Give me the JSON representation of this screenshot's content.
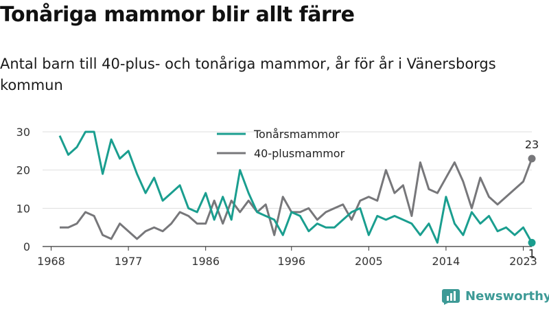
{
  "title": "Tonåriga mammor blir allt färre",
  "subtitle": "Antal barn till 40-plus- och tonåriga mammor, år för år i Vänersborgs kommun",
  "brand": {
    "name": "Newsworthy",
    "color": "#3d9a96"
  },
  "chart_data": {
    "type": "line",
    "xlim": [
      1967,
      2024
    ],
    "ylim": [
      0,
      30
    ],
    "x_ticks": [
      1968,
      1977,
      1986,
      1996,
      2005,
      2014,
      2023
    ],
    "y_ticks": [
      0,
      10,
      20,
      30
    ],
    "grid": true,
    "legend_position": "top-center",
    "x": [
      1969,
      1970,
      1971,
      1972,
      1973,
      1974,
      1975,
      1976,
      1977,
      1978,
      1979,
      1980,
      1981,
      1982,
      1983,
      1984,
      1985,
      1986,
      1987,
      1988,
      1989,
      1990,
      1991,
      1992,
      1993,
      1994,
      1995,
      1996,
      1997,
      1998,
      1999,
      2000,
      2001,
      2002,
      2003,
      2004,
      2005,
      2006,
      2007,
      2008,
      2009,
      2010,
      2011,
      2012,
      2013,
      2014,
      2015,
      2016,
      2017,
      2018,
      2019,
      2020,
      2021,
      2022,
      2023,
      2024
    ],
    "series": [
      {
        "name": "Tonårsmammor",
        "color": "#1a9e8f",
        "values": [
          29,
          24,
          26,
          30,
          30,
          19,
          28,
          23,
          25,
          19,
          14,
          18,
          12,
          14,
          16,
          10,
          9,
          14,
          7,
          13,
          7,
          20,
          14,
          9,
          8,
          7,
          3,
          9,
          8,
          4,
          6,
          5,
          5,
          7,
          9,
          10,
          3,
          8,
          7,
          8,
          7,
          6,
          3,
          6,
          1,
          13,
          6,
          3,
          9,
          6,
          8,
          4,
          5,
          3,
          5,
          1
        ],
        "end_label": "1"
      },
      {
        "name": "40-plusmammor",
        "color": "#77777a",
        "values": [
          5,
          5,
          6,
          9,
          8,
          3,
          2,
          6,
          4,
          2,
          4,
          5,
          4,
          6,
          9,
          8,
          6,
          6,
          12,
          6,
          12,
          9,
          12,
          9,
          11,
          3,
          13,
          9,
          9,
          10,
          7,
          9,
          10,
          11,
          7,
          12,
          13,
          12,
          20,
          14,
          16,
          8,
          22,
          15,
          14,
          18,
          22,
          17,
          10,
          18,
          13,
          11,
          13,
          15,
          17,
          23
        ],
        "end_label": "23"
      }
    ]
  }
}
